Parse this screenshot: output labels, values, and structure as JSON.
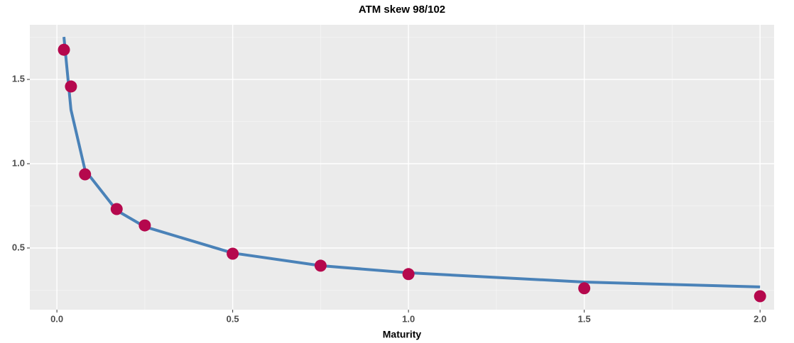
{
  "chart_data": {
    "type": "line",
    "title": "ATM skew 98/102",
    "x_label": "Maturity",
    "x": [
      0.02,
      0.04,
      0.08,
      0.17,
      0.25,
      0.5,
      0.75,
      1.0,
      1.5,
      2.0
    ],
    "series": [
      {
        "type": "line",
        "color": "#4a82b8",
        "values": [
          1.752,
          1.32,
          0.962,
          0.723,
          0.626,
          0.47,
          0.395,
          0.353,
          0.298,
          0.269
        ]
      },
      {
        "type": "scatter",
        "color": "#b5084d",
        "values": [
          1.676,
          1.458,
          0.937,
          0.731,
          0.634,
          0.466,
          0.395,
          0.345,
          0.261,
          0.214
        ]
      }
    ],
    "xlim": [
      -0.077,
      2.04
    ],
    "ylim": [
      0.134,
      1.824
    ],
    "xticks": [
      {
        "value": 0,
        "label": "0.0"
      },
      0.5,
      {
        "value": 1,
        "label": "1.0"
      },
      1.5,
      {
        "value": 2,
        "label": "2.0"
      }
    ],
    "yticks": [
      0.5,
      {
        "value": 1,
        "label": "1.0"
      },
      1.5
    ],
    "grid": true
  }
}
